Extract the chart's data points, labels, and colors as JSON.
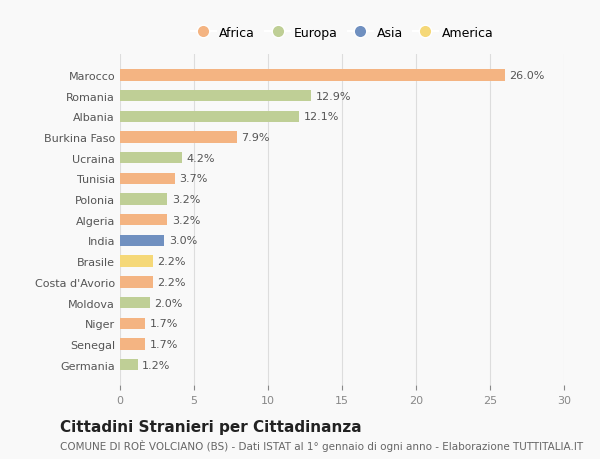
{
  "countries": [
    "Marocco",
    "Romania",
    "Albania",
    "Burkina Faso",
    "Ucraina",
    "Tunisia",
    "Polonia",
    "Algeria",
    "India",
    "Brasile",
    "Costa d'Avorio",
    "Moldova",
    "Niger",
    "Senegal",
    "Germania"
  ],
  "values": [
    26.0,
    12.9,
    12.1,
    7.9,
    4.2,
    3.7,
    3.2,
    3.2,
    3.0,
    2.2,
    2.2,
    2.0,
    1.7,
    1.7,
    1.2
  ],
  "continents": [
    "Africa",
    "Europa",
    "Europa",
    "Africa",
    "Europa",
    "Africa",
    "Europa",
    "Africa",
    "Asia",
    "America",
    "Africa",
    "Europa",
    "Africa",
    "Africa",
    "Europa"
  ],
  "colors": {
    "Africa": "#F4B482",
    "Europa": "#BFCF96",
    "Asia": "#7090C0",
    "America": "#F5D878"
  },
  "legend_order": [
    "Africa",
    "Europa",
    "Asia",
    "America"
  ],
  "xlim": [
    0,
    30
  ],
  "xticks": [
    0,
    5,
    10,
    15,
    20,
    25,
    30
  ],
  "title": "Cittadini Stranieri per Cittadinanza",
  "subtitle": "COMUNE DI ROÈ VOLCIANO (BS) - Dati ISTAT al 1° gennaio di ogni anno - Elaborazione TUTTITALIA.IT",
  "background_color": "#f9f9f9",
  "bar_height": 0.55,
  "label_fontsize": 8,
  "title_fontsize": 11,
  "subtitle_fontsize": 7.5,
  "tick_fontsize": 8,
  "legend_fontsize": 9
}
